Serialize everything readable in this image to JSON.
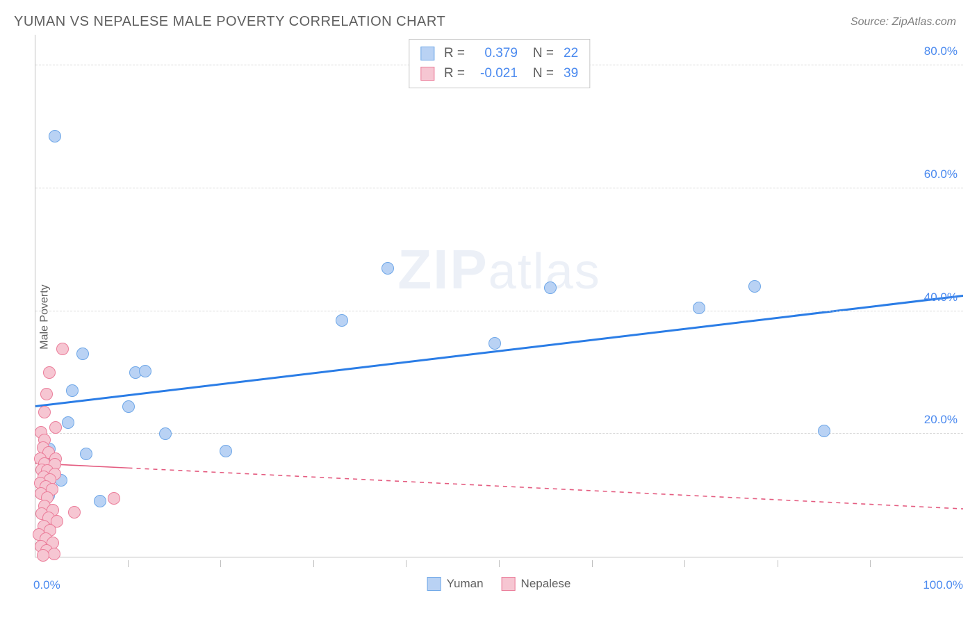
{
  "title": "YUMAN VS NEPALESE MALE POVERTY CORRELATION CHART",
  "source": "Source: ZipAtlas.com",
  "watermark_bold": "ZIP",
  "watermark_rest": "atlas",
  "ylabel": "Male Poverty",
  "xlim": [
    0,
    100
  ],
  "ylim": [
    0,
    85
  ],
  "x_tick_start": "0.0%",
  "x_tick_end": "100.0%",
  "x_minor_ticks": [
    10,
    20,
    30,
    40,
    50,
    60,
    70,
    80,
    90
  ],
  "y_ticks": [
    {
      "v": 20,
      "label": "20.0%"
    },
    {
      "v": 40,
      "label": "40.0%"
    },
    {
      "v": 60,
      "label": "60.0%"
    },
    {
      "v": 80,
      "label": "80.0%"
    }
  ],
  "series": [
    {
      "name": "Yuman",
      "fill": "#b9d2f4",
      "stroke": "#6ea7e8",
      "R": "0.379",
      "N": "22",
      "marker_radius": 9,
      "trend": {
        "x1": 0,
        "y1": 24.5,
        "x2": 100,
        "y2": 42.5,
        "stroke": "#2b7de6",
        "width": 3,
        "dash": ""
      },
      "points": [
        {
          "x": 2.1,
          "y": 68.5
        },
        {
          "x": 38.0,
          "y": 47.0
        },
        {
          "x": 55.5,
          "y": 43.8
        },
        {
          "x": 77.5,
          "y": 44.0
        },
        {
          "x": 71.5,
          "y": 40.5
        },
        {
          "x": 33.0,
          "y": 38.5
        },
        {
          "x": 49.5,
          "y": 34.8
        },
        {
          "x": 85.0,
          "y": 20.5
        },
        {
          "x": 5.1,
          "y": 33.0
        },
        {
          "x": 10.8,
          "y": 30.0
        },
        {
          "x": 11.8,
          "y": 30.2
        },
        {
          "x": 4.0,
          "y": 27.0
        },
        {
          "x": 10.0,
          "y": 24.5
        },
        {
          "x": 3.5,
          "y": 21.8
        },
        {
          "x": 14.0,
          "y": 20.0
        },
        {
          "x": 5.5,
          "y": 16.7
        },
        {
          "x": 1.5,
          "y": 17.5
        },
        {
          "x": 20.5,
          "y": 17.2
        },
        {
          "x": 2.0,
          "y": 15.5
        },
        {
          "x": 2.8,
          "y": 12.5
        },
        {
          "x": 7.0,
          "y": 9.0
        },
        {
          "x": 1.4,
          "y": 10.0
        }
      ]
    },
    {
      "name": "Nepalese",
      "fill": "#f6c6d2",
      "stroke": "#eb7d9a",
      "R": "-0.021",
      "N": "39",
      "marker_radius": 9,
      "trend": {
        "x1": 0,
        "y1": 15.2,
        "x2": 100,
        "y2": 7.8,
        "stroke": "#e45c80",
        "width": 1.6,
        "dash": "6,6",
        "solid_until": 10
      },
      "points": [
        {
          "x": 2.9,
          "y": 33.8
        },
        {
          "x": 1.5,
          "y": 30.0
        },
        {
          "x": 1.2,
          "y": 26.5
        },
        {
          "x": 1.0,
          "y": 23.5
        },
        {
          "x": 2.2,
          "y": 21.0
        },
        {
          "x": 0.6,
          "y": 20.3
        },
        {
          "x": 1.0,
          "y": 19.0
        },
        {
          "x": 0.8,
          "y": 17.8
        },
        {
          "x": 1.4,
          "y": 17.0
        },
        {
          "x": 2.2,
          "y": 16.0
        },
        {
          "x": 0.5,
          "y": 16.0
        },
        {
          "x": 1.0,
          "y": 15.2
        },
        {
          "x": 2.1,
          "y": 15.0
        },
        {
          "x": 0.7,
          "y": 14.2
        },
        {
          "x": 1.3,
          "y": 14.0
        },
        {
          "x": 2.1,
          "y": 13.5
        },
        {
          "x": 0.9,
          "y": 13.0
        },
        {
          "x": 1.6,
          "y": 12.6
        },
        {
          "x": 0.5,
          "y": 12.0
        },
        {
          "x": 1.1,
          "y": 11.4
        },
        {
          "x": 1.8,
          "y": 11.0
        },
        {
          "x": 8.5,
          "y": 9.5
        },
        {
          "x": 0.6,
          "y": 10.3
        },
        {
          "x": 1.3,
          "y": 9.6
        },
        {
          "x": 4.2,
          "y": 7.2
        },
        {
          "x": 1.0,
          "y": 8.3
        },
        {
          "x": 1.9,
          "y": 7.6
        },
        {
          "x": 0.7,
          "y": 7.0
        },
        {
          "x": 1.4,
          "y": 6.3
        },
        {
          "x": 2.3,
          "y": 5.8
        },
        {
          "x": 0.9,
          "y": 5.0
        },
        {
          "x": 1.6,
          "y": 4.3
        },
        {
          "x": 0.4,
          "y": 3.6
        },
        {
          "x": 1.1,
          "y": 3.0
        },
        {
          "x": 1.9,
          "y": 2.3
        },
        {
          "x": 0.6,
          "y": 1.7
        },
        {
          "x": 1.2,
          "y": 1.0
        },
        {
          "x": 2.0,
          "y": 0.5
        },
        {
          "x": 0.8,
          "y": 0.2
        }
      ]
    }
  ],
  "legend_R_label": "R =",
  "legend_N_label": "N ="
}
